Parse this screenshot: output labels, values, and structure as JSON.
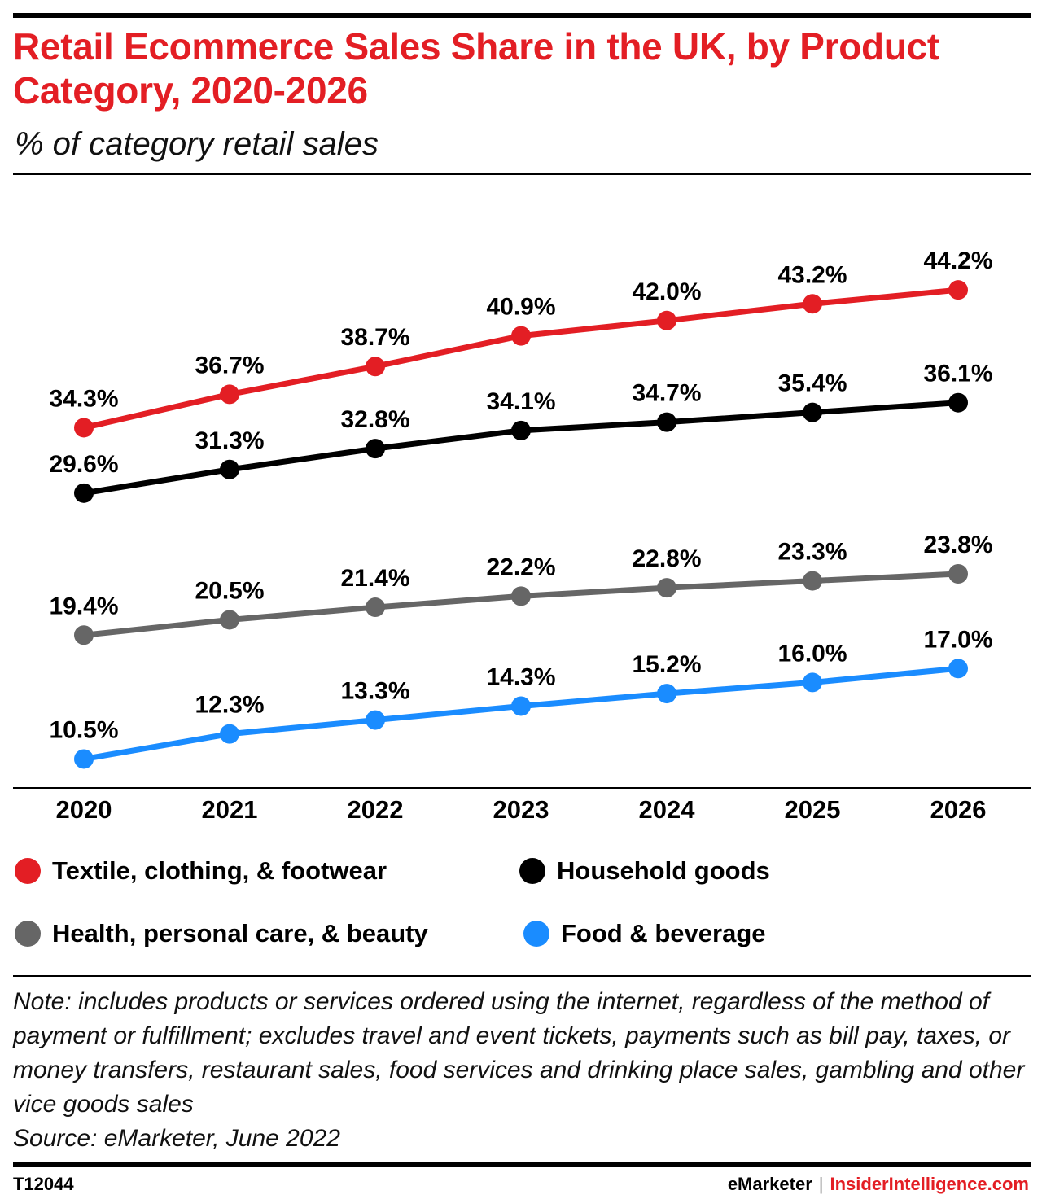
{
  "header": {
    "title": "Retail Ecommerce Sales Share in the UK, by Product Category, 2020-2026",
    "subtitle": "% of category retail sales"
  },
  "chart_data": {
    "type": "line",
    "title": "Retail Ecommerce Sales Share in the UK, by Product Category, 2020-2026",
    "subtitle": "% of category retail sales",
    "categories": [
      "2020",
      "2021",
      "2022",
      "2023",
      "2024",
      "2025",
      "2026"
    ],
    "ylim": [
      0,
      50
    ],
    "grid": false,
    "legend_position": "bottom",
    "series": [
      {
        "name": "Textile, clothing, & footwear",
        "color": "#e31e24",
        "values": [
          34.3,
          36.7,
          38.7,
          40.9,
          42.0,
          43.2,
          44.2
        ],
        "labels": [
          "34.3%",
          "36.7%",
          "38.7%",
          "40.9%",
          "42.0%",
          "43.2%",
          "44.2%"
        ]
      },
      {
        "name": "Household goods",
        "color": "#000000",
        "values": [
          29.6,
          31.3,
          32.8,
          34.1,
          34.7,
          35.4,
          36.1
        ],
        "labels": [
          "29.6%",
          "31.3%",
          "32.8%",
          "34.1%",
          "34.7%",
          "35.4%",
          "36.1%"
        ]
      },
      {
        "name": "Health, personal care, & beauty",
        "color": "#666666",
        "values": [
          19.4,
          20.5,
          21.4,
          22.2,
          22.8,
          23.3,
          23.8
        ],
        "labels": [
          "19.4%",
          "20.5%",
          "21.4%",
          "22.2%",
          "22.8%",
          "23.3%",
          "23.8%"
        ]
      },
      {
        "name": "Food & beverage",
        "color": "#1a8cff",
        "values": [
          10.5,
          12.3,
          13.3,
          14.3,
          15.2,
          16.0,
          17.0
        ],
        "labels": [
          "10.5%",
          "12.3%",
          "13.3%",
          "14.3%",
          "15.2%",
          "16.0%",
          "17.0%"
        ]
      }
    ]
  },
  "legend": {
    "items": [
      {
        "label": "Textile, clothing, & footwear",
        "color": "#e31e24"
      },
      {
        "label": "Household goods",
        "color": "#000000"
      },
      {
        "label": "Health, personal care, & beauty",
        "color": "#666666"
      },
      {
        "label": "Food & beverage",
        "color": "#1a8cff"
      }
    ]
  },
  "note": {
    "text": "Note: includes products or services ordered using the internet, regardless of the method of payment or fulfillment; excludes travel and event tickets, payments such as bill pay, taxes, or money transfers, restaurant sales, food services and drinking place sales, gambling and other vice goods sales",
    "source": "Source: eMarketer, June 2022"
  },
  "footer": {
    "chart_id": "T12044",
    "brand": "eMarketer",
    "separator": "|",
    "brand2": "InsiderIntelligence.com"
  }
}
